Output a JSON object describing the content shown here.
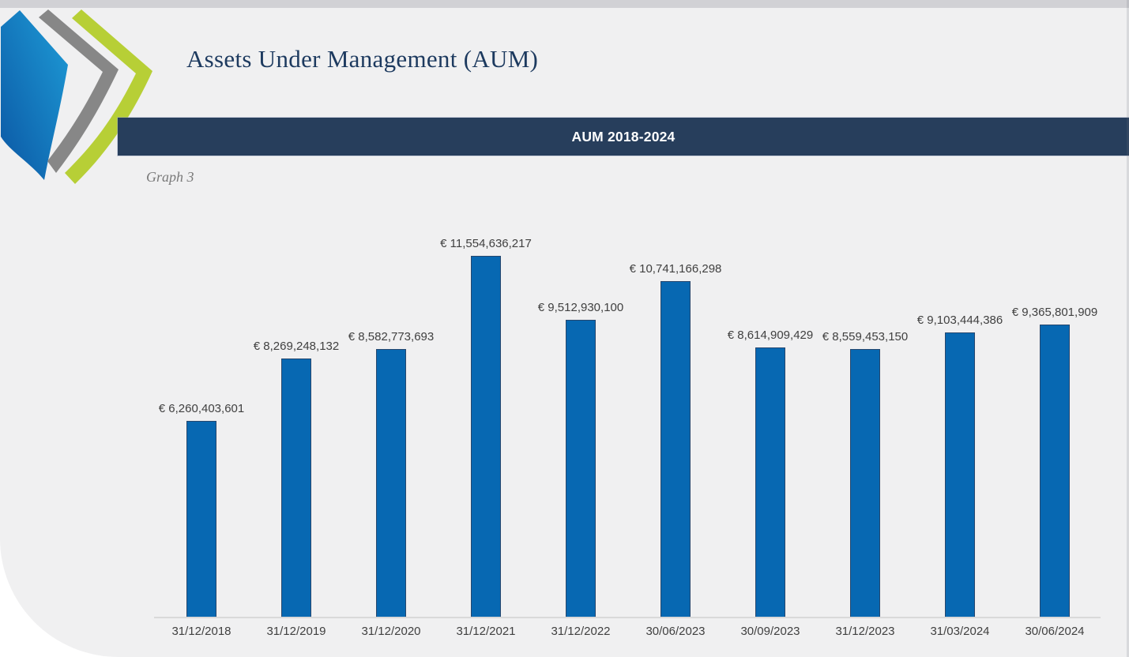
{
  "page": {
    "title": "Assets Under Management (AUM)",
    "graph_caption": "Graph 3",
    "banner": {
      "label": "AUM 2018-2024",
      "bg": "#273E5C",
      "text_color": "#FFFFFF"
    }
  },
  "logo": {
    "description": "triple-chevron-logo",
    "colors": {
      "blue_dark": "#0B57A4",
      "blue_light": "#1E9CD7",
      "gray": "#878787",
      "green": "#B7CF36"
    }
  },
  "chart_data": {
    "type": "bar",
    "title": "AUM 2018-2024",
    "categories": [
      "31/12/2018",
      "31/12/2019",
      "31/12/2020",
      "31/12/2021",
      "31/12/2022",
      "30/06/2023",
      "30/09/2023",
      "31/12/2023",
      "31/03/2024",
      "30/06/2024"
    ],
    "values": [
      6260403601,
      8269248132,
      8582773693,
      11554636217,
      9512930100,
      10741166298,
      8614909429,
      8559453150,
      9103444386,
      9365801909
    ],
    "labels": [
      "€ 6,260,403,601",
      "€ 8,269,248,132",
      "€ 8,582,773,693",
      "€ 11,554,636,217",
      "€ 9,512,930,100",
      "€ 10,741,166,298",
      "€ 8,614,909,429",
      "€ 8,559,453,150",
      "€ 9,103,444,386",
      "€ 9,365,801,909"
    ],
    "xlabel": "",
    "ylabel": "",
    "ylim": [
      0,
      11554636217
    ],
    "grid": false,
    "legend": false,
    "data_labels_position": "above-bars",
    "bar_color": "#0768B2",
    "bar_border_color": "#26476E",
    "axis_line_color": "#D9D9D9",
    "label_color": "#404040"
  }
}
